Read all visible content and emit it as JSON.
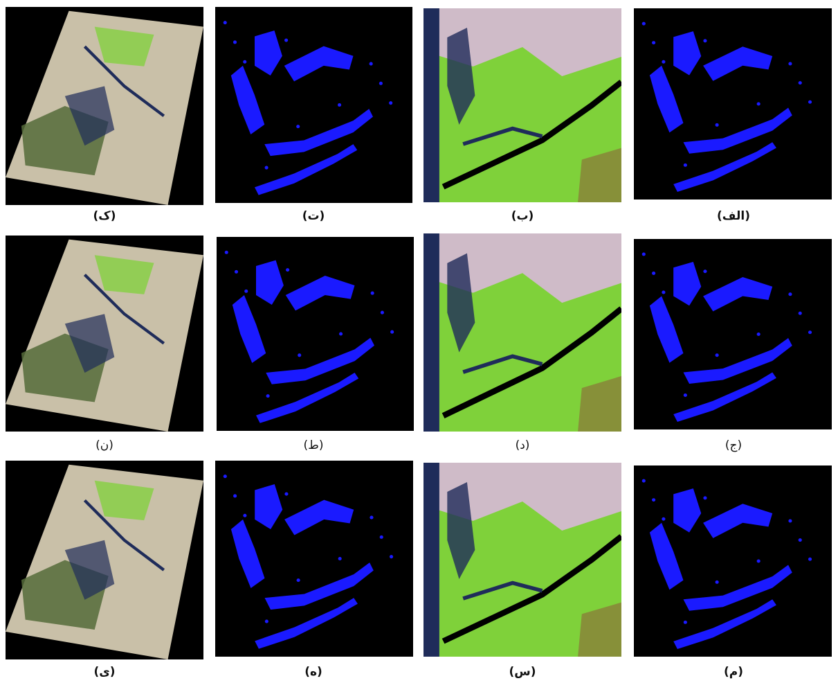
{
  "figure": {
    "rows": [
      {
        "panels": [
          {
            "caption": "(ک)",
            "bold": true,
            "kind": "scene"
          },
          {
            "caption": "(ت)",
            "bold": true,
            "kind": "mask"
          },
          {
            "caption": "(ب)",
            "bold": true,
            "kind": "closeup"
          },
          {
            "caption": "(الف)",
            "bold": true,
            "kind": "mask"
          }
        ]
      },
      {
        "panels": [
          {
            "caption": "(ن)",
            "bold": false,
            "kind": "scene"
          },
          {
            "caption": "(ط)",
            "bold": false,
            "kind": "mask"
          },
          {
            "caption": "(د)",
            "bold": false,
            "kind": "closeup"
          },
          {
            "caption": "(ج)",
            "bold": false,
            "kind": "mask"
          }
        ]
      },
      {
        "panels": [
          {
            "caption": "(ی)",
            "bold": true,
            "kind": "scene"
          },
          {
            "caption": "(ه)",
            "bold": true,
            "kind": "mask"
          },
          {
            "caption": "(س)",
            "bold": true,
            "kind": "closeup"
          },
          {
            "caption": "(م)",
            "bold": true,
            "kind": "mask"
          }
        ]
      }
    ],
    "colors": {
      "water_mask": "#1a1aff",
      "background": "#000000",
      "vegetation": "#7fd13a",
      "bare_soil": "#c9c0a8",
      "urban": "#d8b8d8",
      "water_dark": "#1f2c5a"
    }
  }
}
